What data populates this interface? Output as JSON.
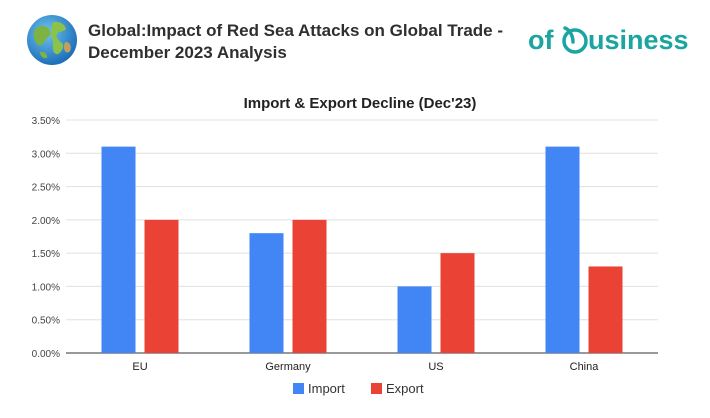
{
  "header": {
    "title_line1": "Global:Impact of Red Sea Attacks on Global Trade -",
    "title_line2": "December 2023 Analysis",
    "logo_text_left": "of",
    "logo_text_right": "usiness",
    "globe_icon": "globe-icon"
  },
  "colors": {
    "import": "#4285f4",
    "export": "#ea4335",
    "logo": "#1aa5a0",
    "grid": "#e0e0e0",
    "axis": "#333333"
  },
  "chart_data": {
    "type": "bar",
    "title": "Import & Export Decline (Dec'23)",
    "categories": [
      "EU",
      "Germany",
      "US",
      "China"
    ],
    "series": [
      {
        "name": "Import",
        "values": [
          3.1,
          1.8,
          1.0,
          3.1
        ]
      },
      {
        "name": "Export",
        "values": [
          2.0,
          2.0,
          1.5,
          1.3
        ]
      }
    ],
    "yticks": [
      "0.00%",
      "0.50%",
      "1.00%",
      "1.50%",
      "2.00%",
      "2.50%",
      "3.00%",
      "3.50%"
    ],
    "ylim": [
      0,
      3.5
    ],
    "grid": true,
    "legend": "bottom-center"
  }
}
